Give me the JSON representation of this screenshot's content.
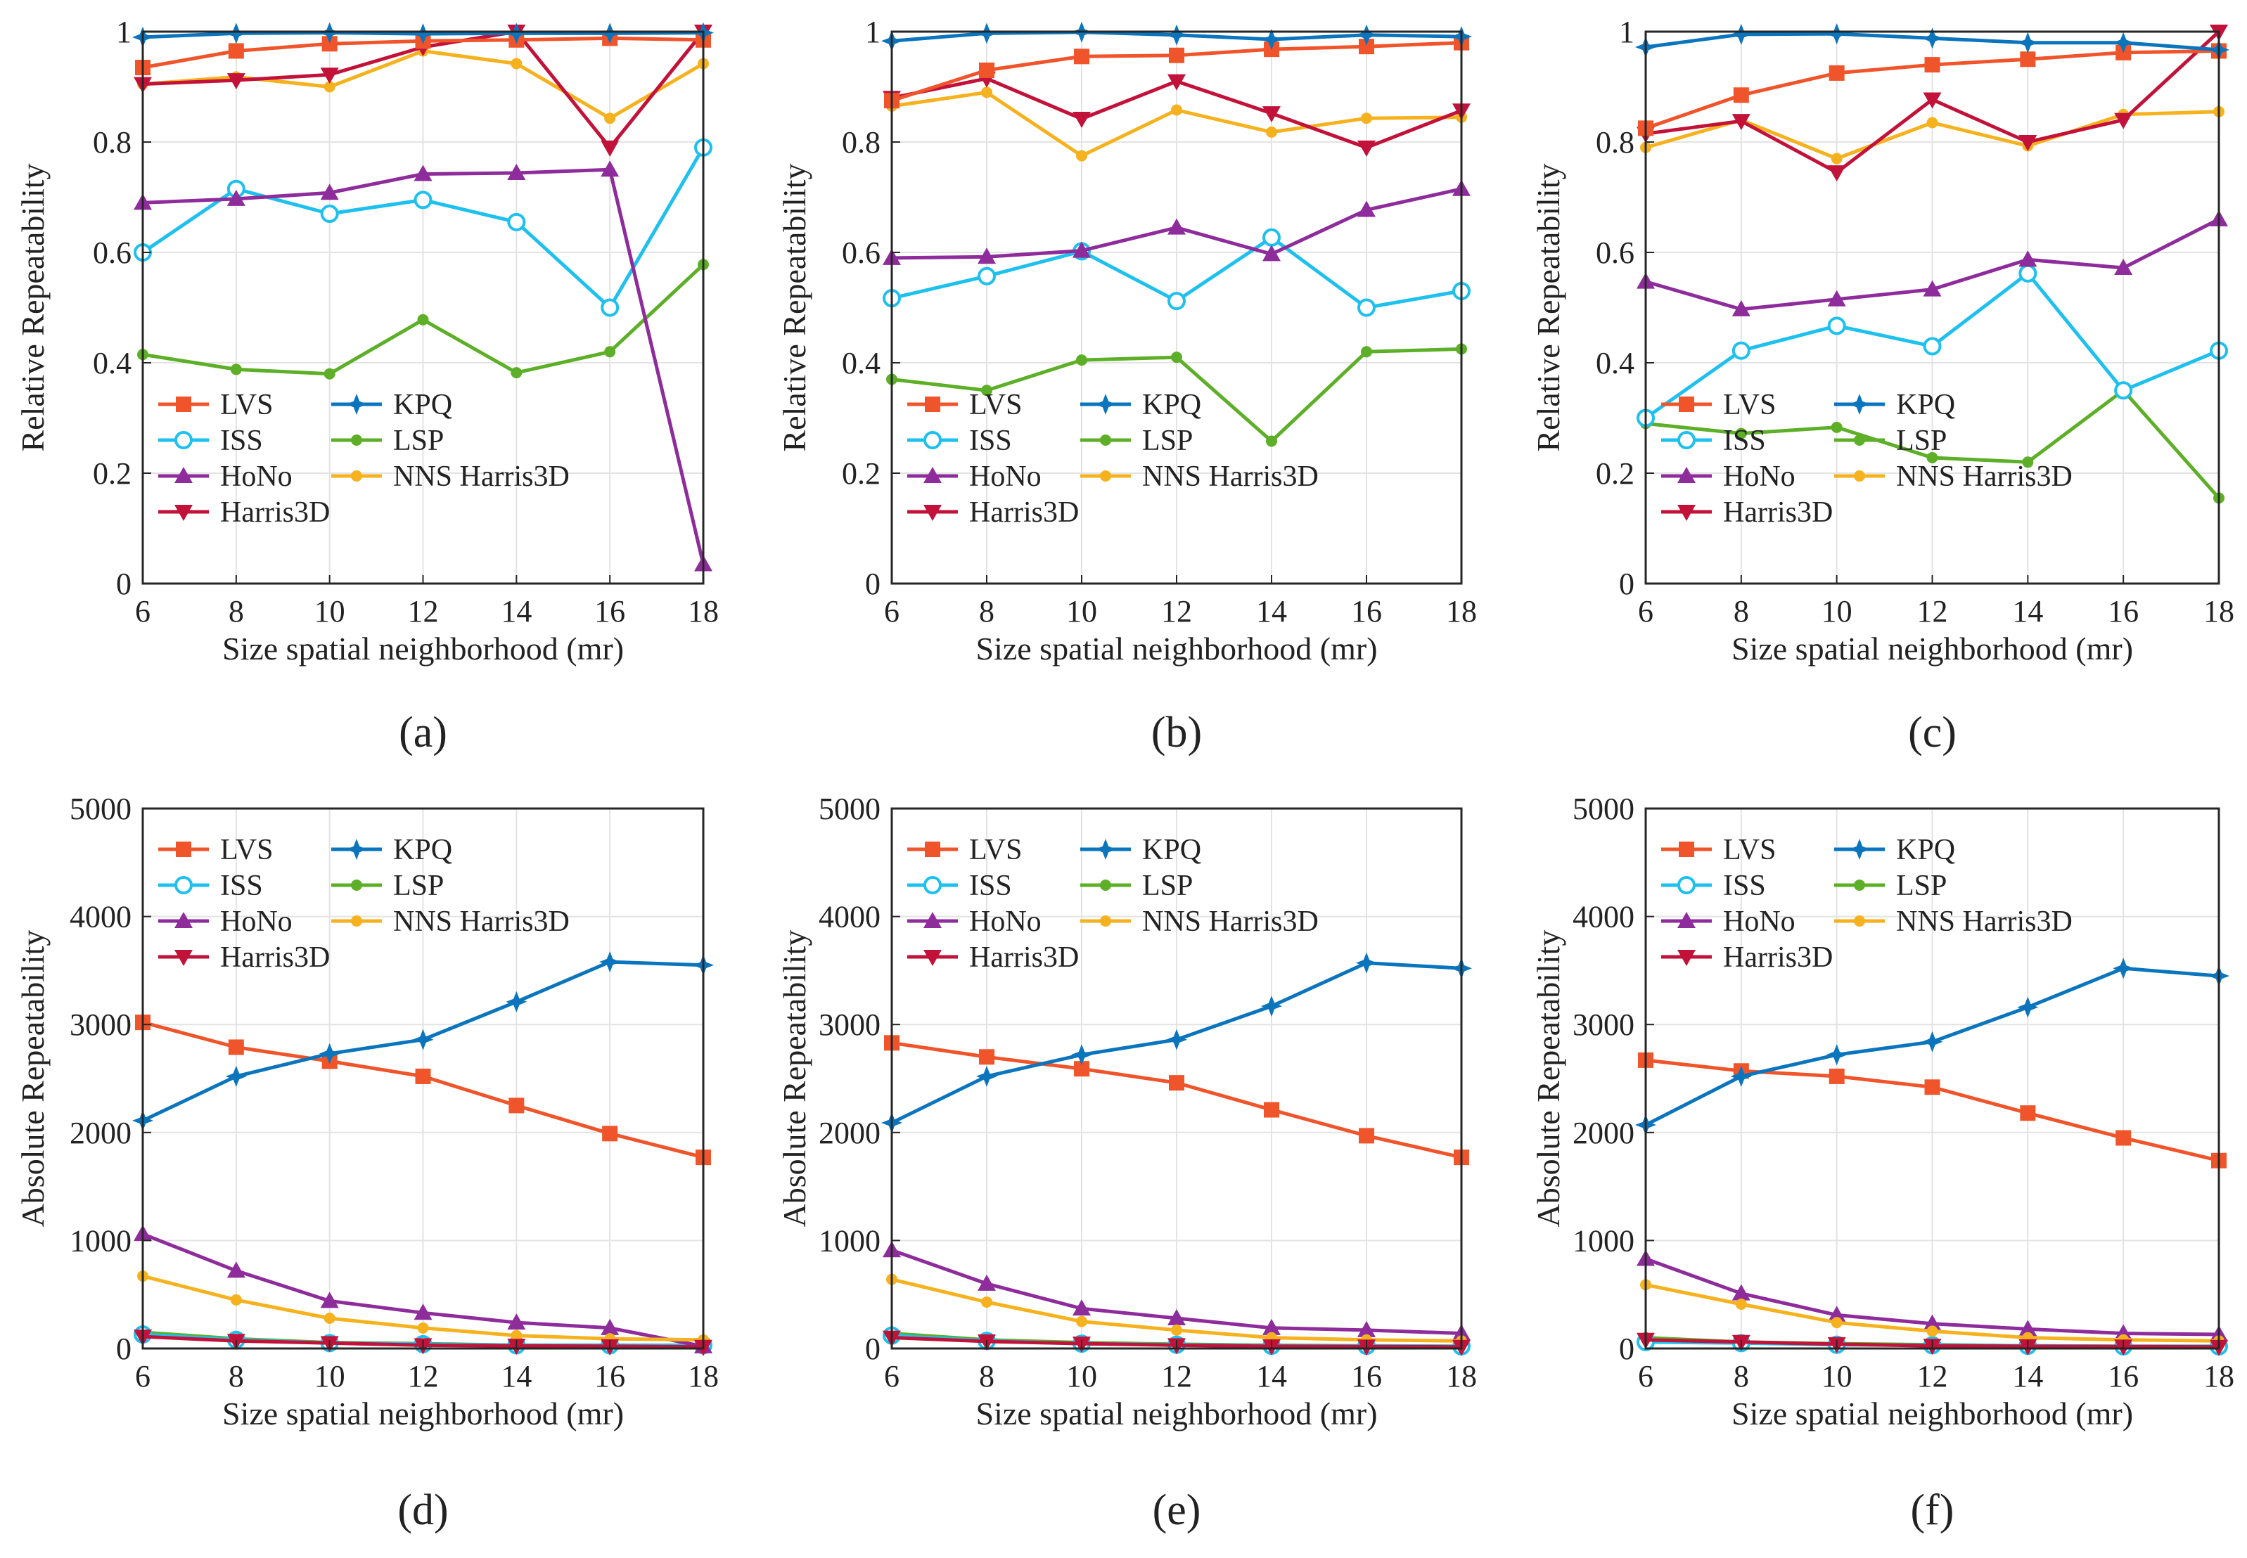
{
  "figure": {
    "panel_labels": [
      "(a)",
      "(b)",
      "(c)",
      "(d)",
      "(e)",
      "(f)"
    ]
  },
  "series_styles": [
    {
      "name": "LVS",
      "color": "#F0542A",
      "marker": "square"
    },
    {
      "name": "KPQ",
      "color": "#0A75BD",
      "marker": "star"
    },
    {
      "name": "ISS",
      "color": "#1EC0EE",
      "marker": "circle"
    },
    {
      "name": "LSP",
      "color": "#5CAF27",
      "marker": "dot"
    },
    {
      "name": "HoNo",
      "color": "#8E2C9C",
      "marker": "triangle-up"
    },
    {
      "name": "NNS Harris3D",
      "color": "#F6B21E",
      "marker": "dot"
    },
    {
      "name": "Harris3D",
      "color": "#C3123A",
      "marker": "triangle-down"
    }
  ],
  "chart_data": [
    {
      "type": "line",
      "panel": "(a)",
      "xlabel": "Size spatial neighborhood (mr)",
      "ylabel": "Relative Repeatability",
      "x": [
        6,
        8,
        10,
        12,
        14,
        16,
        18
      ],
      "xlim": [
        6,
        18
      ],
      "ylim": [
        0,
        1
      ],
      "xticks": [
        "6",
        "8",
        "10",
        "12",
        "14",
        "16",
        "18"
      ],
      "yticks": [
        "0",
        "0.2",
        "0.4",
        "0.6",
        "0.8",
        "1"
      ],
      "legend": [
        "LVS",
        "KPQ",
        "ISS",
        "LSP",
        "HoNo",
        "NNS Harris3D",
        "Harris3D"
      ],
      "series": [
        {
          "name": "LVS",
          "values": [
            0.935,
            0.965,
            0.978,
            0.983,
            0.985,
            0.988,
            0.985
          ]
        },
        {
          "name": "KPQ",
          "values": [
            0.99,
            0.997,
            0.998,
            0.996,
            0.997,
            0.997,
            0.998
          ]
        },
        {
          "name": "ISS",
          "values": [
            0.6,
            0.715,
            0.67,
            0.695,
            0.655,
            0.5,
            0.79
          ]
        },
        {
          "name": "LSP",
          "values": [
            0.415,
            0.388,
            0.38,
            0.478,
            0.382,
            0.42,
            0.578
          ]
        },
        {
          "name": "HoNo",
          "values": [
            0.69,
            0.697,
            0.708,
            0.742,
            0.744,
            0.75,
            0.035
          ]
        },
        {
          "name": "NNS Harris3D",
          "values": [
            0.905,
            0.918,
            0.9,
            0.965,
            0.942,
            0.843,
            0.942
          ]
        },
        {
          "name": "Harris3D",
          "values": [
            0.905,
            0.912,
            0.922,
            0.972,
            1.0,
            0.79,
            1.0
          ]
        }
      ]
    },
    {
      "type": "line",
      "panel": "(b)",
      "xlabel": "Size spatial neighborhood (mr)",
      "ylabel": "Relative Repeatability",
      "x": [
        6,
        8,
        10,
        12,
        14,
        16,
        18
      ],
      "xlim": [
        6,
        18
      ],
      "ylim": [
        0,
        1
      ],
      "xticks": [
        "6",
        "8",
        "10",
        "12",
        "14",
        "16",
        "18"
      ],
      "yticks": [
        "0",
        "0.2",
        "0.4",
        "0.6",
        "0.8",
        "1"
      ],
      "legend": [
        "LVS",
        "KPQ",
        "ISS",
        "LSP",
        "HoNo",
        "NNS Harris3D",
        "Harris3D"
      ],
      "series": [
        {
          "name": "LVS",
          "values": [
            0.875,
            0.93,
            0.955,
            0.957,
            0.968,
            0.973,
            0.98
          ]
        },
        {
          "name": "KPQ",
          "values": [
            0.983,
            0.997,
            0.999,
            0.994,
            0.986,
            0.994,
            0.991
          ]
        },
        {
          "name": "ISS",
          "values": [
            0.517,
            0.557,
            0.602,
            0.512,
            0.627,
            0.5,
            0.53
          ]
        },
        {
          "name": "LSP",
          "values": [
            0.37,
            0.35,
            0.405,
            0.41,
            0.258,
            0.42,
            0.425
          ]
        },
        {
          "name": "HoNo",
          "values": [
            0.59,
            0.592,
            0.603,
            0.645,
            0.597,
            0.677,
            0.715
          ]
        },
        {
          "name": "NNS Harris3D",
          "values": [
            0.865,
            0.89,
            0.775,
            0.858,
            0.818,
            0.843,
            0.845
          ]
        },
        {
          "name": "Harris3D",
          "values": [
            0.88,
            0.915,
            0.842,
            0.91,
            0.852,
            0.79,
            0.857
          ]
        }
      ]
    },
    {
      "type": "line",
      "panel": "(c)",
      "xlabel": "Size spatial neighborhood (mr)",
      "ylabel": "Relative Repeatability",
      "x": [
        6,
        8,
        10,
        12,
        14,
        16,
        18
      ],
      "xlim": [
        6,
        18
      ],
      "ylim": [
        0,
        1
      ],
      "xticks": [
        "6",
        "8",
        "10",
        "12",
        "14",
        "16",
        "18"
      ],
      "yticks": [
        "0",
        "0.2",
        "0.4",
        "0.6",
        "0.8",
        "1"
      ],
      "legend": [
        "LVS",
        "KPQ",
        "ISS",
        "LSP",
        "HoNo",
        "NNS Harris3D",
        "Harris3D"
      ],
      "series": [
        {
          "name": "LVS",
          "values": [
            0.825,
            0.885,
            0.925,
            0.94,
            0.95,
            0.962,
            0.965
          ]
        },
        {
          "name": "KPQ",
          "values": [
            0.972,
            0.995,
            0.996,
            0.988,
            0.98,
            0.98,
            0.967
          ]
        },
        {
          "name": "ISS",
          "values": [
            0.3,
            0.422,
            0.467,
            0.43,
            0.562,
            0.35,
            0.422
          ]
        },
        {
          "name": "LSP",
          "values": [
            0.29,
            0.272,
            0.283,
            0.228,
            0.22,
            0.35,
            0.155
          ]
        },
        {
          "name": "HoNo",
          "values": [
            0.547,
            0.497,
            0.515,
            0.533,
            0.587,
            0.572,
            0.66
          ]
        },
        {
          "name": "NNS Harris3D",
          "values": [
            0.79,
            0.84,
            0.77,
            0.835,
            0.793,
            0.85,
            0.855
          ]
        },
        {
          "name": "Harris3D",
          "values": [
            0.815,
            0.838,
            0.745,
            0.877,
            0.8,
            0.84,
            1.0
          ]
        }
      ]
    },
    {
      "type": "line",
      "panel": "(d)",
      "xlabel": "Size spatial neighborhood (mr)",
      "ylabel": "Absolute Repeatability",
      "x": [
        6,
        8,
        10,
        12,
        14,
        16,
        18
      ],
      "xlim": [
        6,
        18
      ],
      "ylim": [
        0,
        5000
      ],
      "xticks": [
        "6",
        "8",
        "10",
        "12",
        "14",
        "16",
        "18"
      ],
      "yticks": [
        "0",
        "1000",
        "2000",
        "3000",
        "4000",
        "5000"
      ],
      "legend": [
        "LVS",
        "KPQ",
        "ISS",
        "LSP",
        "HoNo",
        "NNS Harris3D",
        "Harris3D"
      ],
      "series": [
        {
          "name": "LVS",
          "values": [
            3020,
            2790,
            2660,
            2520,
            2250,
            1990,
            1770
          ]
        },
        {
          "name": "KPQ",
          "values": [
            2110,
            2520,
            2730,
            2860,
            3210,
            3580,
            3550
          ]
        },
        {
          "name": "ISS",
          "values": [
            130,
            80,
            50,
            40,
            30,
            30,
            30
          ]
        },
        {
          "name": "LSP",
          "values": [
            150,
            90,
            55,
            45,
            30,
            30,
            25
          ]
        },
        {
          "name": "HoNo",
          "values": [
            1060,
            720,
            440,
            330,
            240,
            190,
            20
          ]
        },
        {
          "name": "NNS Harris3D",
          "values": [
            670,
            450,
            280,
            190,
            120,
            90,
            80
          ]
        },
        {
          "name": "Harris3D",
          "values": [
            110,
            70,
            50,
            30,
            25,
            20,
            15
          ]
        }
      ]
    },
    {
      "type": "line",
      "panel": "(e)",
      "xlabel": "Size spatial neighborhood (mr)",
      "ylabel": "Absolute Repeatability",
      "x": [
        6,
        8,
        10,
        12,
        14,
        16,
        18
      ],
      "xlim": [
        6,
        18
      ],
      "ylim": [
        0,
        5000
      ],
      "xticks": [
        "6",
        "8",
        "10",
        "12",
        "14",
        "16",
        "18"
      ],
      "yticks": [
        "0",
        "1000",
        "2000",
        "3000",
        "4000",
        "5000"
      ],
      "legend": [
        "LVS",
        "KPQ",
        "ISS",
        "LSP",
        "HoNo",
        "NNS Harris3D",
        "Harris3D"
      ],
      "series": [
        {
          "name": "LVS",
          "values": [
            2830,
            2700,
            2590,
            2460,
            2210,
            1970,
            1770
          ]
        },
        {
          "name": "KPQ",
          "values": [
            2090,
            2520,
            2720,
            2860,
            3170,
            3570,
            3520
          ]
        },
        {
          "name": "ISS",
          "values": [
            120,
            70,
            45,
            35,
            25,
            25,
            20
          ]
        },
        {
          "name": "LSP",
          "values": [
            140,
            80,
            55,
            40,
            30,
            25,
            20
          ]
        },
        {
          "name": "HoNo",
          "values": [
            910,
            600,
            370,
            280,
            190,
            170,
            140
          ]
        },
        {
          "name": "NNS Harris3D",
          "values": [
            640,
            430,
            250,
            170,
            100,
            80,
            70
          ]
        },
        {
          "name": "Harris3D",
          "values": [
            100,
            65,
            45,
            30,
            20,
            18,
            15
          ]
        }
      ]
    },
    {
      "type": "line",
      "panel": "(f)",
      "xlabel": "Size spatial neighborhood (mr)",
      "ylabel": "Absolute Repeatability",
      "x": [
        6,
        8,
        10,
        12,
        14,
        16,
        18
      ],
      "xlim": [
        6,
        18
      ],
      "ylim": [
        0,
        5000
      ],
      "xticks": [
        "6",
        "8",
        "10",
        "12",
        "14",
        "16",
        "18"
      ],
      "yticks": [
        "0",
        "1000",
        "2000",
        "3000",
        "4000",
        "5000"
      ],
      "legend": [
        "LVS",
        "KPQ",
        "ISS",
        "LSP",
        "HoNo",
        "NNS Harris3D",
        "Harris3D"
      ],
      "series": [
        {
          "name": "LVS",
          "values": [
            2670,
            2570,
            2520,
            2420,
            2180,
            1950,
            1740
          ]
        },
        {
          "name": "KPQ",
          "values": [
            2070,
            2520,
            2720,
            2840,
            3160,
            3520,
            3450
          ]
        },
        {
          "name": "ISS",
          "values": [
            60,
            50,
            35,
            30,
            25,
            20,
            20
          ]
        },
        {
          "name": "LSP",
          "values": [
            100,
            60,
            45,
            35,
            25,
            20,
            20
          ]
        },
        {
          "name": "HoNo",
          "values": [
            830,
            510,
            310,
            230,
            180,
            140,
            130
          ]
        },
        {
          "name": "NNS Harris3D",
          "values": [
            590,
            410,
            240,
            160,
            100,
            80,
            70
          ]
        },
        {
          "name": "Harris3D",
          "values": [
            80,
            60,
            40,
            25,
            20,
            18,
            15
          ]
        }
      ]
    }
  ]
}
